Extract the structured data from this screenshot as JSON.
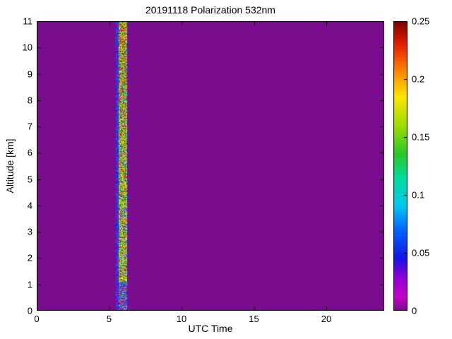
{
  "chart_data": {
    "type": "heatmap",
    "title": "20191118 Polarization 532nm",
    "xlabel": "UTC Time",
    "ylabel": "Altitude [km]",
    "xlim": [
      0,
      24
    ],
    "ylim": [
      0,
      11
    ],
    "x_ticks": [
      0,
      5,
      10,
      15,
      20
    ],
    "x_tick_labels": [
      "0",
      "5",
      "10",
      "15",
      "20"
    ],
    "y_ticks": [
      0,
      1,
      2,
      3,
      4,
      5,
      6,
      7,
      8,
      9,
      10,
      11
    ],
    "y_tick_labels": [
      "0",
      "1",
      "2",
      "3",
      "4",
      "5",
      "6",
      "7",
      "8",
      "9",
      "10",
      "11"
    ],
    "grid": false,
    "colorbar": {
      "range": [
        0,
        0.25
      ],
      "ticks": [
        0,
        0.05,
        0.1,
        0.15,
        0.2,
        0.25
      ],
      "tick_labels": [
        "0",
        "0.05",
        "0.1",
        "0.15",
        "0.2",
        "0.25"
      ],
      "position": "right"
    },
    "background_value": 0,
    "background_color": "#7a0c8e",
    "colormap": [
      {
        "value": 0.0,
        "color": "#7a0c8e"
      },
      {
        "value": 0.012,
        "color": "#c800c8"
      },
      {
        "value": 0.03,
        "color": "#8800d8"
      },
      {
        "value": 0.045,
        "color": "#1414e6"
      },
      {
        "value": 0.07,
        "color": "#0064ff"
      },
      {
        "value": 0.09,
        "color": "#00c8f0"
      },
      {
        "value": 0.115,
        "color": "#00dc9b"
      },
      {
        "value": 0.135,
        "color": "#28c828"
      },
      {
        "value": 0.16,
        "color": "#a0dc00"
      },
      {
        "value": 0.185,
        "color": "#ffe600"
      },
      {
        "value": 0.205,
        "color": "#ff8c00"
      },
      {
        "value": 0.23,
        "color": "#e61e00"
      },
      {
        "value": 0.25,
        "color": "#7d0000"
      }
    ],
    "features": [
      {
        "name": "depolarization-plume",
        "description": "Narrow noisy vertical band of enhanced depolarization spanning the full 0-11 km altitude range; blue low values (~0.03-0.08) on the left edge, green-yellow core (~0.13-0.19), red speckles (~0.2-0.25) mostly above 7.5 km, magenta/blue noise below ~1 km",
        "x_start": 5.45,
        "x_end": 6.3,
        "edge_value_range": [
          0.03,
          0.08
        ],
        "core_value_range": [
          0.13,
          0.19
        ],
        "speckle_value_range": [
          0.2,
          0.25
        ]
      }
    ],
    "noise_seed": 20191118
  }
}
